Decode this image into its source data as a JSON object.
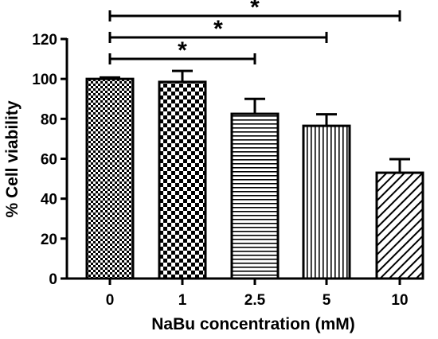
{
  "chart_data": {
    "type": "bar",
    "xlabel": "NaBu concentration (mM)",
    "ylabel": "% Cell viability",
    "ylim": [
      0,
      120
    ],
    "yticks": [
      0,
      20,
      40,
      60,
      80,
      100,
      120
    ],
    "categories": [
      "0",
      "1",
      "2.5",
      "5",
      "10"
    ],
    "values": [
      100,
      98.5,
      82.5,
      76.5,
      53
    ],
    "errors": [
      0.7,
      5.5,
      7.5,
      5.8,
      6.8
    ],
    "patterns": [
      "fine-checker",
      "coarse-checker",
      "horizontal-lines",
      "vertical-lines",
      "diagonal-lines"
    ],
    "bar_fill": "#ffffff",
    "stroke_color": "#000000",
    "grid": false,
    "significance": [
      {
        "from": "0",
        "to": "2.5",
        "label": "*"
      },
      {
        "from": "0",
        "to": "5",
        "label": "*"
      },
      {
        "from": "0",
        "to": "10",
        "label": "*"
      }
    ]
  }
}
